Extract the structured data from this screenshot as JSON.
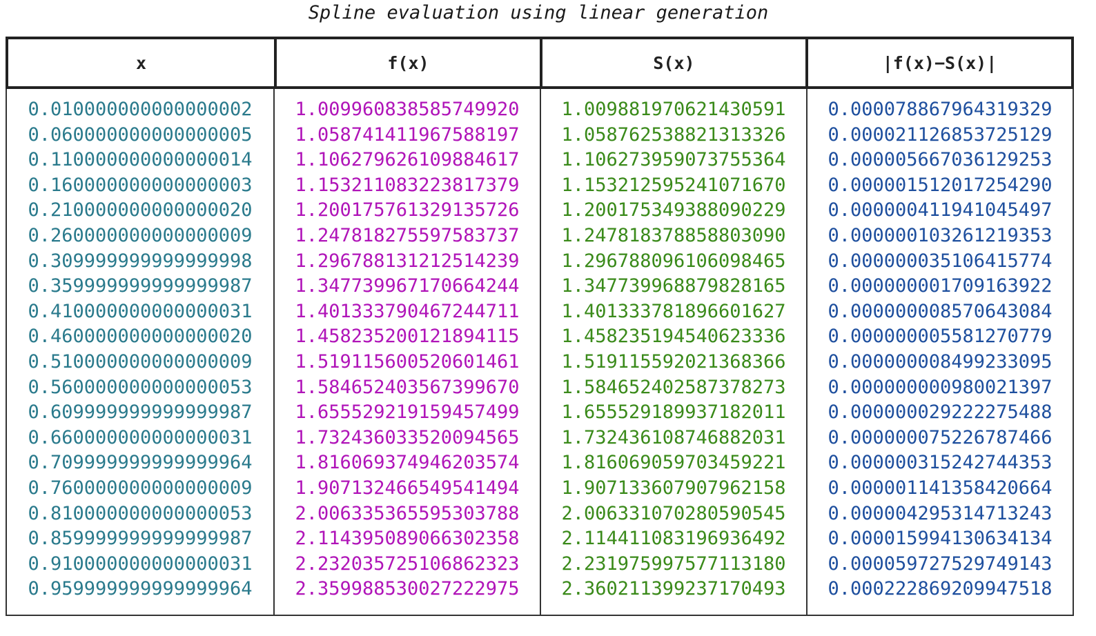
{
  "chart_data": {
    "type": "table",
    "title": "Spline evaluation using linear generation",
    "columns": [
      "x",
      "f(x)",
      "S(x)",
      "|f(x)−S(x)|"
    ],
    "column_colors": [
      "#2a7a8c",
      "#b014b8",
      "#3a8a1a",
      "#1e4f9e"
    ],
    "rows": [
      [
        "0.010000000000000002",
        "1.009960838585749920",
        "1.009881970621430591",
        "0.000078867964319329"
      ],
      [
        "0.060000000000000005",
        "1.058741411967588197",
        "1.058762538821313326",
        "0.000021126853725129"
      ],
      [
        "0.110000000000000014",
        "1.106279626109884617",
        "1.106273959073755364",
        "0.000005667036129253"
      ],
      [
        "0.160000000000000003",
        "1.153211083223817379",
        "1.153212595241071670",
        "0.000001512017254290"
      ],
      [
        "0.210000000000000020",
        "1.200175761329135726",
        "1.200175349388090229",
        "0.000000411941045497"
      ],
      [
        "0.260000000000000009",
        "1.247818275597583737",
        "1.247818378858803090",
        "0.000000103261219353"
      ],
      [
        "0.309999999999999998",
        "1.296788131212514239",
        "1.296788096106098465",
        "0.000000035106415774"
      ],
      [
        "0.359999999999999987",
        "1.347739967170664244",
        "1.347739968879828165",
        "0.000000001709163922"
      ],
      [
        "0.410000000000000031",
        "1.401333790467244711",
        "1.401333781896601627",
        "0.000000008570643084"
      ],
      [
        "0.460000000000000020",
        "1.458235200121894115",
        "1.458235194540623336",
        "0.000000005581270779"
      ],
      [
        "0.510000000000000009",
        "1.519115600520601461",
        "1.519115592021368366",
        "0.000000008499233095"
      ],
      [
        "0.560000000000000053",
        "1.584652403567399670",
        "1.584652402587378273",
        "0.000000000980021397"
      ],
      [
        "0.609999999999999987",
        "1.655529219159457499",
        "1.655529189937182011",
        "0.000000029222275488"
      ],
      [
        "0.660000000000000031",
        "1.732436033520094565",
        "1.732436108746882031",
        "0.000000075226787466"
      ],
      [
        "0.709999999999999964",
        "1.816069374946203574",
        "1.816069059703459221",
        "0.000000315242744353"
      ],
      [
        "0.760000000000000009",
        "1.907132466549541494",
        "1.907133607907962158",
        "0.000001141358420664"
      ],
      [
        "0.810000000000000053",
        "2.006335365595303788",
        "2.006331070280590545",
        "0.000004295314713243"
      ],
      [
        "0.859999999999999987",
        "2.114395089066302358",
        "2.114411083196936492",
        "0.000015994130634134"
      ],
      [
        "0.910000000000000031",
        "2.232035725106862323",
        "2.231975997577113180",
        "0.000059727529749143"
      ],
      [
        "0.959999999999999964",
        "2.359988530027222975",
        "2.360211399237170493",
        "0.000222869209947518"
      ]
    ]
  }
}
